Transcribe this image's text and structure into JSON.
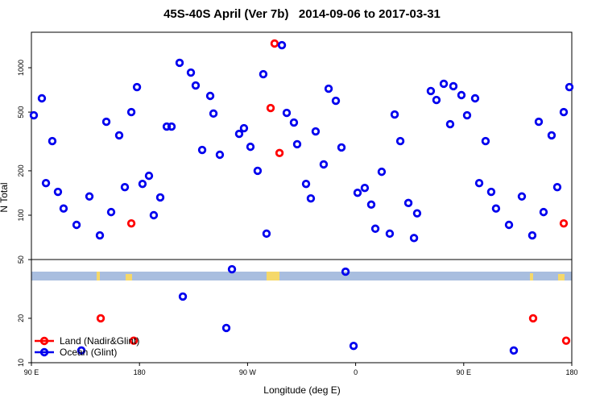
{
  "chart_data": {
    "type": "scatter",
    "title": "45S-40S April (Ver 7b)   2014-09-06 to 2017-03-31",
    "x_label": "Longitude (deg E)",
    "y_label": "N Total",
    "yscale": "log",
    "xlim": [
      90,
      540
    ],
    "xticks": [
      {
        "value": 90,
        "label": "90 E"
      },
      {
        "value": 180,
        "label": "180"
      },
      {
        "value": 270,
        "label": "90 W"
      },
      {
        "value": 360,
        "label": "0"
      },
      {
        "value": 450,
        "label": "90 E"
      },
      {
        "value": 540,
        "label": "180"
      }
    ],
    "ylim": [
      10,
      1740
    ],
    "yticks": [
      10,
      20,
      50,
      100,
      200,
      500,
      1000
    ],
    "legend": "bottom-left",
    "series": [
      {
        "name": "Land (Nadir&Glint)",
        "color": "#ff0000",
        "x": [
          147.7,
          173.2,
          175.2,
          289.2,
          292.5,
          296.6,
          507.8,
          533.3,
          535.3
        ],
        "values": [
          20,
          88,
          14.1,
          533,
          1459,
          264,
          20,
          88,
          14.1
        ]
      },
      {
        "name": "Ocean (Glint)",
        "color": "#0000ee",
        "x": [
          92.0,
          98.7,
          102.1,
          107.4,
          112.1,
          116.8,
          127.6,
          131.6,
          138.3,
          147.0,
          152.4,
          156.4,
          163.1,
          167.8,
          173.2,
          177.9,
          182.5,
          187.9,
          191.9,
          197.3,
          202.7,
          206.7,
          213.4,
          216.1,
          222.8,
          226.8,
          232.2,
          238.9,
          241.6,
          246.9,
          252.3,
          257.0,
          263.0,
          267.0,
          272.4,
          278.4,
          283.1,
          285.8,
          298.6,
          302.6,
          308.6,
          311.3,
          318.7,
          322.7,
          326.7,
          333.4,
          337.5,
          343.5,
          348.2,
          351.6,
          358.3,
          361.6,
          367.6,
          373.0,
          376.4,
          381.7,
          388.4,
          392.5,
          397.2,
          403.9,
          408.6,
          411.2,
          422.6,
          427.3,
          433.4,
          438.7,
          441.4,
          448.1,
          452.8,
          459.5,
          462.9,
          468.2,
          472.9,
          476.9,
          487.7,
          491.7,
          498.4,
          507.1,
          512.5,
          516.5,
          523.2,
          527.9,
          533.3,
          538.0
        ],
        "values": [
          476,
          620,
          165,
          318,
          144,
          111,
          86,
          12.1,
          134,
          73,
          430,
          105,
          348,
          155,
          500,
          739,
          163,
          185,
          100,
          132,
          399,
          399,
          1079,
          28.1,
          927,
          758,
          277,
          644,
          489,
          257,
          17.2,
          43,
          356,
          389,
          291,
          200,
          904,
          75,
          1422,
          494,
          425,
          303,
          163,
          130,
          370,
          221,
          721,
          597,
          288,
          41.4,
          13.0,
          142,
          153,
          118,
          81,
          197,
          75,
          482,
          318,
          121,
          70,
          103,
          695,
          604,
          778,
          414,
          749,
          652,
          476,
          620,
          165,
          318,
          144,
          111,
          86,
          12.1,
          134,
          73,
          430,
          105,
          348,
          155,
          500,
          739
        ]
      }
    ]
  }
}
